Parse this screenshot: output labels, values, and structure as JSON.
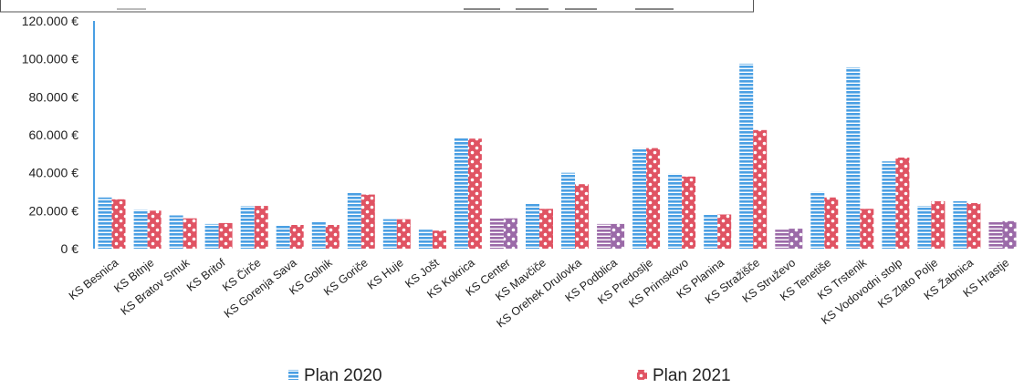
{
  "chart_data": {
    "type": "bar",
    "categories": [
      "KS Besnica",
      "KS Bitnje",
      "KS Bratov Smuk",
      "KS Britof",
      "KS Čirče",
      "KS Gorenja Sava",
      "KS Golnik",
      "KS Goriče",
      "KS Huje",
      "KS Jošt",
      "KS Kokrica",
      "KS Center",
      "KS Mavčiče",
      "KS Orehek Drulovka",
      "KS Podblica",
      "KS Predoslje",
      "KS Primskovo",
      "KS Planina",
      "KS Stražišče",
      "KS Struževo",
      "KS Tenetiše",
      "KS Trstenik",
      "KS Vodovodni stolp",
      "KS Zlato Polje",
      "KS Žabnica",
      "KS Hrastje"
    ],
    "series": [
      {
        "name": "Plan 2020",
        "color": "#4a9fe3",
        "values": [
          27000,
          20500,
          17500,
          13000,
          22500,
          12000,
          14500,
          29500,
          15500,
          10000,
          58500,
          16000,
          24000,
          40000,
          13000,
          53000,
          39500,
          18000,
          97500,
          10000,
          30000,
          95500,
          46000,
          22500,
          25000,
          14500
        ]
      },
      {
        "name": "Plan 2021",
        "color": "#e05363",
        "values": [
          26000,
          20000,
          16000,
          13500,
          22500,
          12500,
          12500,
          28500,
          15500,
          9500,
          58000,
          16000,
          21000,
          34000,
          13000,
          53000,
          38000,
          18000,
          62500,
          10500,
          27000,
          21000,
          48000,
          25000,
          24000,
          14500
        ]
      }
    ],
    "highlighted_categories": [
      "KS Center",
      "KS Podblica",
      "KS Struževo",
      "KS Hrastje"
    ],
    "highlight_color": "#9b6aa8",
    "ylim": [
      0,
      120000
    ],
    "yticks": [
      0,
      20000,
      40000,
      60000,
      80000,
      100000,
      120000
    ],
    "ytick_labels": [
      "0 €",
      "20.000 €",
      "40.000 €",
      "60.000 €",
      "80.000 €",
      "100.000 €",
      "120.000 €"
    ],
    "grid": false,
    "legend_position": "bottom",
    "legend": [
      {
        "label": "Plan 2020",
        "icon": "striped-square-icon"
      },
      {
        "label": "Plan 2021",
        "icon": "dotted-square-icon"
      }
    ],
    "title": "",
    "xlabel": "",
    "ylabel": ""
  }
}
